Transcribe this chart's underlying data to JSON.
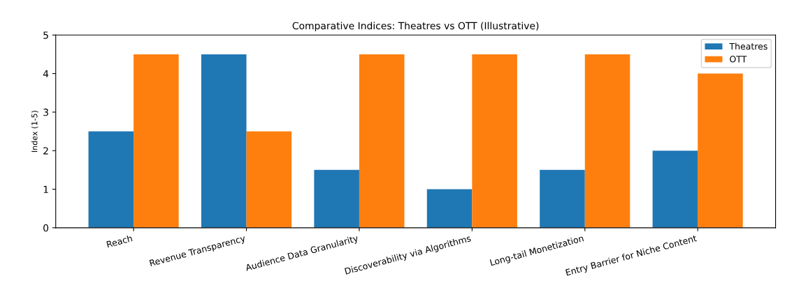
{
  "chart_data": {
    "type": "bar",
    "title": "Comparative Indices: Theatres vs OTT (Illustrative)",
    "ylabel": "Index (1-5)",
    "categories": [
      "Reach",
      "Revenue Transparency",
      "Audience Data Granularity",
      "Discoverability via Algorithms",
      "Long-tail Monetization",
      "Entry Barrier for Niche Content"
    ],
    "series": [
      {
        "name": "Theatres",
        "color": "#1f77b4",
        "values": [
          2.5,
          4.5,
          1.5,
          1,
          1.5,
          2
        ]
      },
      {
        "name": "OTT",
        "color": "#ff7f0e",
        "values": [
          4.5,
          2.5,
          4.5,
          4.5,
          4.5,
          4
        ]
      }
    ],
    "ylim": [
      0,
      5
    ],
    "yticks": [
      0,
      1,
      2,
      3,
      4,
      5
    ],
    "grid": false,
    "legend": "top right"
  }
}
